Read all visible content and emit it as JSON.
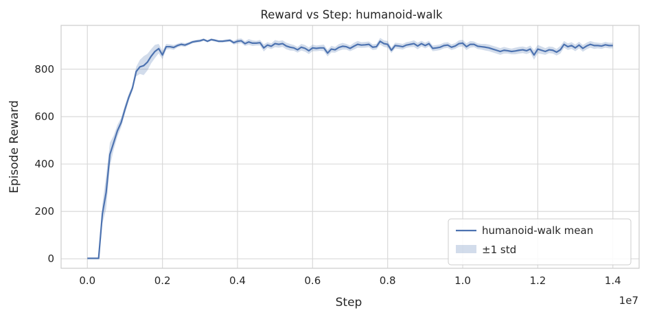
{
  "chart_data": {
    "type": "line",
    "title": "Reward vs Step: humanoid-walk",
    "xlabel": "Step",
    "ylabel": "Episode Reward",
    "x_offset_label": "1e7",
    "xlim": [
      -0.07,
      1.47
    ],
    "ylim": [
      -40,
      985
    ],
    "x_ticks": [
      0.0,
      0.2,
      0.4,
      0.6,
      0.8,
      1.0,
      1.2,
      1.4
    ],
    "x_tick_labels": [
      "0.0",
      "0.2",
      "0.4",
      "0.6",
      "0.8",
      "1.0",
      "1.2",
      "1.4"
    ],
    "y_ticks": [
      0,
      200,
      400,
      600,
      800
    ],
    "y_tick_labels": [
      "0",
      "200",
      "400",
      "600",
      "800"
    ],
    "grid": true,
    "legend_position": "bottom-right",
    "colors": {
      "line": "#4c72b0",
      "band": "#4c72b0",
      "grid": "#d9d9d9",
      "spine": "#cccccc"
    },
    "series": [
      {
        "name": "humanoid-walk mean",
        "band_name": "±1 std",
        "x": [
          0,
          0.03,
          0.03,
          0.04,
          0.05,
          0.06,
          0.07,
          0.08,
          0.09,
          0.1,
          0.11,
          0.12,
          0.13,
          0.14,
          0.15,
          0.16,
          0.17,
          0.18,
          0.19,
          0.2,
          0.21,
          0.22,
          0.23,
          0.24,
          0.25,
          0.26,
          0.27,
          0.28,
          0.29,
          0.3,
          0.31,
          0.32,
          0.33,
          0.34,
          0.35,
          0.36,
          0.37,
          0.38,
          0.39,
          0.4,
          0.41,
          0.42,
          0.43,
          0.44,
          0.45,
          0.46,
          0.47,
          0.48,
          0.49,
          0.5,
          0.51,
          0.52,
          0.53,
          0.54,
          0.55,
          0.56,
          0.57,
          0.58,
          0.59,
          0.6,
          0.61,
          0.62,
          0.63,
          0.64,
          0.65,
          0.66,
          0.67,
          0.68,
          0.69,
          0.7,
          0.71,
          0.72,
          0.73,
          0.74,
          0.75,
          0.76,
          0.77,
          0.78,
          0.79,
          0.8,
          0.81,
          0.82,
          0.83,
          0.84,
          0.85,
          0.86,
          0.87,
          0.88,
          0.89,
          0.9,
          0.91,
          0.92,
          0.93,
          0.94,
          0.95,
          0.96,
          0.97,
          0.98,
          0.99,
          1.0,
          1.01,
          1.02,
          1.03,
          1.04,
          1.05,
          1.06,
          1.07,
          1.08,
          1.09,
          1.1,
          1.11,
          1.12,
          1.13,
          1.14,
          1.15,
          1.16,
          1.17,
          1.18,
          1.19,
          1.2,
          1.21,
          1.22,
          1.23,
          1.24,
          1.25,
          1.26,
          1.27,
          1.28,
          1.29,
          1.3,
          1.31,
          1.32,
          1.33,
          1.34,
          1.35,
          1.36,
          1.37,
          1.38,
          1.39,
          1.4
        ],
        "y": [
          2,
          2,
          3,
          190,
          280,
          440,
          490,
          540,
          575,
          630,
          680,
          720,
          790,
          810,
          815,
          830,
          855,
          875,
          887,
          860,
          895,
          895,
          892,
          900,
          905,
          902,
          908,
          915,
          918,
          920,
          925,
          918,
          925,
          922,
          918,
          918,
          920,
          922,
          912,
          918,
          920,
          908,
          915,
          910,
          910,
          912,
          890,
          902,
          897,
          908,
          905,
          908,
          898,
          893,
          890,
          882,
          893,
          888,
          878,
          890,
          888,
          890,
          890,
          868,
          885,
          882,
          892,
          897,
          895,
          888,
          897,
          905,
          902,
          903,
          905,
          893,
          895,
          918,
          908,
          905,
          880,
          900,
          898,
          895,
          902,
          905,
          908,
          898,
          908,
          900,
          908,
          888,
          890,
          893,
          900,
          902,
          893,
          898,
          908,
          910,
          895,
          905,
          905,
          897,
          895,
          893,
          890,
          885,
          880,
          875,
          880,
          878,
          875,
          877,
          880,
          882,
          878,
          885,
          860,
          885,
          880,
          875,
          882,
          880,
          872,
          882,
          905,
          895,
          900,
          890,
          902,
          888,
          898,
          905,
          900,
          900,
          898,
          903,
          900,
          900
        ],
        "std": [
          1,
          1,
          1,
          40,
          70,
          50,
          30,
          25,
          20,
          18,
          15,
          12,
          20,
          30,
          40,
          35,
          30,
          28,
          20,
          18,
          12,
          10,
          10,
          8,
          8,
          8,
          6,
          6,
          6,
          6,
          5,
          5,
          5,
          5,
          5,
          5,
          6,
          6,
          8,
          10,
          10,
          10,
          12,
          12,
          10,
          12,
          15,
          12,
          12,
          15,
          14,
          14,
          14,
          14,
          12,
          12,
          14,
          14,
          14,
          14,
          12,
          12,
          14,
          14,
          14,
          12,
          14,
          14,
          12,
          12,
          14,
          14,
          12,
          12,
          12,
          12,
          12,
          14,
          14,
          14,
          12,
          12,
          12,
          12,
          12,
          12,
          14,
          14,
          12,
          12,
          12,
          12,
          12,
          12,
          12,
          12,
          12,
          12,
          14,
          14,
          14,
          14,
          12,
          12,
          12,
          14,
          14,
          14,
          14,
          14,
          14,
          12,
          12,
          14,
          14,
          14,
          14,
          15,
          20,
          18,
          16,
          14,
          14,
          14,
          14,
          16,
          14,
          14,
          14,
          14,
          14,
          14,
          14,
          14,
          14,
          12,
          12,
          12,
          12,
          12
        ]
      }
    ]
  }
}
